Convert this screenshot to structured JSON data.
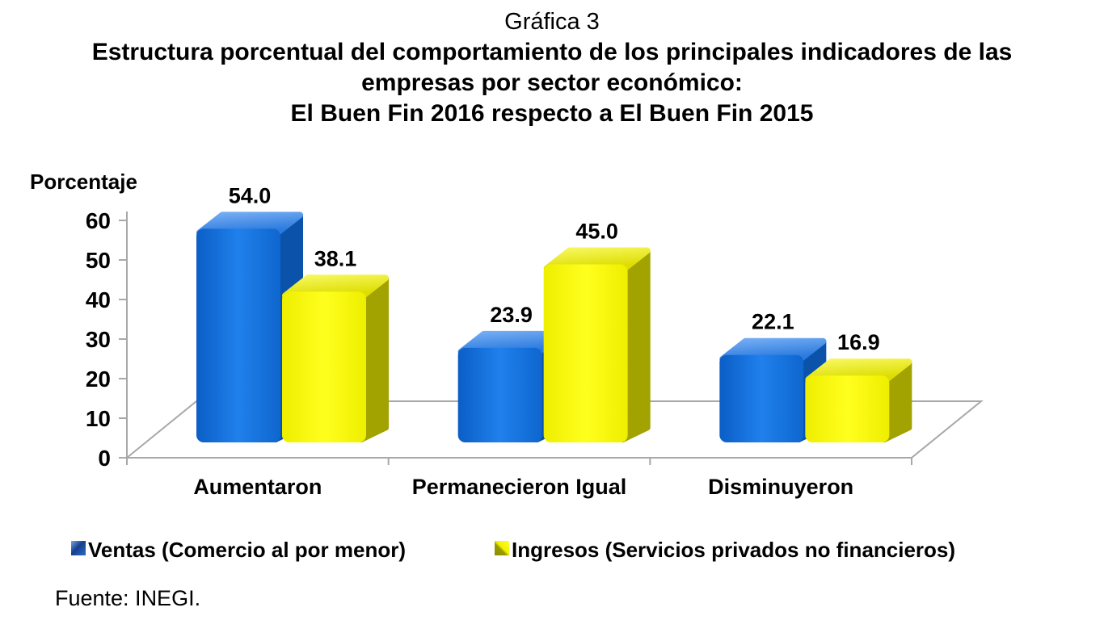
{
  "page": {
    "background": "#ffffff",
    "text_color": "#000000"
  },
  "title": {
    "line1": "Gráfica 3",
    "line2": "Estructura porcentual del comportamiento de los principales indicadores de las",
    "line3": "empresas por sector económico:",
    "line4": "El Buen Fin 2016 respecto a El Buen Fin 2015"
  },
  "chart_data": {
    "type": "bar",
    "style": "3d-clustered-column",
    "ylabel": "Porcentaje",
    "categories": [
      "Aumentaron",
      "Permanecieron Igual",
      "Disminuyeron"
    ],
    "series": [
      {
        "name": "Ventas (Comercio al por menor)",
        "values": [
          54.0,
          23.9,
          22.1
        ],
        "color": "#0d6adb",
        "front_gradient": [
          "#0b5ec6",
          "#2080ec",
          "#0e66ce"
        ],
        "top_gradient": [
          "#72abf2",
          "#2a7adf"
        ],
        "side_color": "#0a52aa"
      },
      {
        "name": "Ingresos (Servicios privados no financieros)",
        "values": [
          38.1,
          45.0,
          16.9
        ],
        "color": "#ffff00",
        "front_gradient": [
          "#eeee00",
          "#ffff1e",
          "#eeee00"
        ],
        "top_gradient": [
          "#f6f65a",
          "#dddd00"
        ],
        "side_color": "#a2a200"
      }
    ],
    "y_axis": {
      "min": 0,
      "max": 60,
      "step": 10,
      "tick_labels": [
        "0",
        "10",
        "20",
        "30",
        "40",
        "50",
        "60"
      ]
    },
    "value_label_decimals": 1,
    "grid": false,
    "legend_position": "bottom",
    "axis_color": "#a8a8a8",
    "plot_background": "#ffffff"
  },
  "legend": {
    "items": [
      {
        "label": "Ventas (Comercio al por menor)",
        "color": "#1a5fc8"
      },
      {
        "label": "Ingresos (Servicios privados no financieros)",
        "color": "#ffff00"
      }
    ]
  },
  "source": {
    "text": "Fuente: INEGI."
  }
}
